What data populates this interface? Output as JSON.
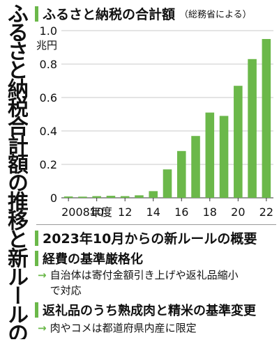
{
  "vertical_title": "ふるさと納税合計額の推移と新ルールの概要",
  "chart_section": {
    "title": "ふるさと納税の合計額",
    "source_note": "（総務省による）"
  },
  "chart_data": {
    "type": "bar",
    "categories": [
      "2008",
      "2009",
      "2010",
      "2011",
      "2012",
      "2013",
      "2014",
      "2015",
      "2016",
      "2017",
      "2018",
      "2019",
      "2020",
      "2021",
      "2022"
    ],
    "values": [
      0.008,
      0.007,
      0.01,
      0.012,
      0.01,
      0.015,
      0.04,
      0.17,
      0.28,
      0.37,
      0.51,
      0.49,
      0.67,
      0.83,
      0.95
    ],
    "x_tick_labels": [
      {
        "category": "2008",
        "label": "2008年度"
      },
      {
        "category": "2010",
        "label": "10"
      },
      {
        "category": "2012",
        "label": "12"
      },
      {
        "category": "2014",
        "label": "14"
      },
      {
        "category": "2016",
        "label": "16"
      },
      {
        "category": "2018",
        "label": "18"
      },
      {
        "category": "2020",
        "label": "20"
      },
      {
        "category": "2022",
        "label": "22"
      }
    ],
    "y_ticks": [
      {
        "value": 0,
        "label": "0"
      },
      {
        "value": 0.2,
        "label": "0.2"
      },
      {
        "value": 0.4,
        "label": "0.4"
      },
      {
        "value": 0.6,
        "label": "0.6"
      },
      {
        "value": 0.8,
        "label": "0.8"
      },
      {
        "value": 1.0,
        "label": "1.0"
      }
    ],
    "y_unit": "兆円",
    "ylim": [
      0,
      1.0
    ],
    "grid": true,
    "bar_color": "#6bb84a"
  },
  "rules_section": {
    "title": "2023年10月からの新ルールの概要",
    "items": [
      {
        "heading": "経費の基準厳格化",
        "detail": "自治体は寄付金額引き上げや返礼品縮小で対応"
      },
      {
        "heading": "返礼品のうち熟成肉と精米の基準変更",
        "detail": "肉やコメは都道府県内産に限定"
      }
    ]
  },
  "colors": {
    "accent": "#6bb84a",
    "grid": "#c8c8c8",
    "text": "#111111"
  }
}
